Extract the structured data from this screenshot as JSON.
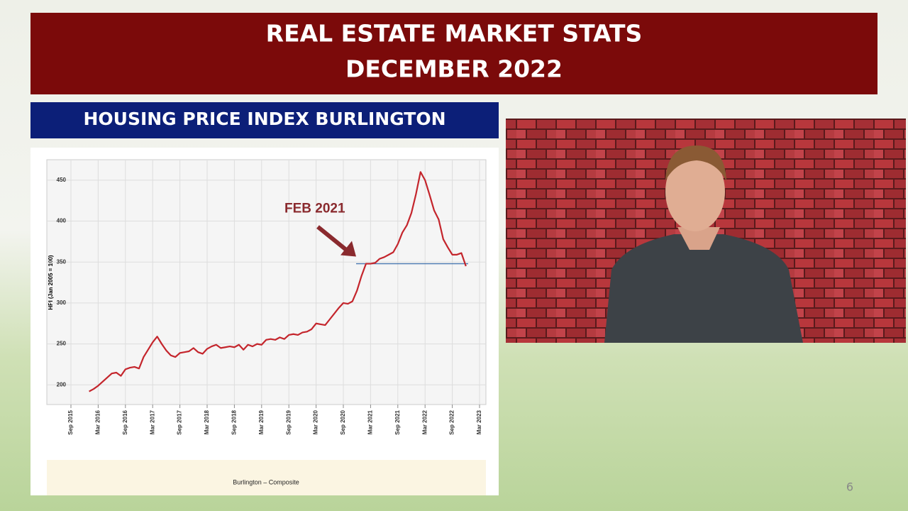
{
  "slide": {
    "title_lines": [
      "REAL ESTATE MARKET STATS",
      "DECEMBER 2022"
    ],
    "section_title": "HOUSING PRICE INDEX BURLINGTON",
    "page_number": "6"
  },
  "chart_data": {
    "type": "line",
    "ylabel": "HPI (Jan 2005 = 100)",
    "x": [
      "Jan 2016",
      "Feb 2016",
      "Mar 2016",
      "Apr 2016",
      "May 2016",
      "Jun 2016",
      "Jul 2016",
      "Aug 2016",
      "Sep 2016",
      "Oct 2016",
      "Nov 2016",
      "Dec 2016",
      "Jan 2017",
      "Feb 2017",
      "Mar 2017",
      "Apr 2017",
      "May 2017",
      "Jun 2017",
      "Jul 2017",
      "Aug 2017",
      "Sep 2017",
      "Oct 2017",
      "Nov 2017",
      "Dec 2017",
      "Jan 2018",
      "Feb 2018",
      "Mar 2018",
      "Apr 2018",
      "May 2018",
      "Jun 2018",
      "Jul 2018",
      "Aug 2018",
      "Sep 2018",
      "Oct 2018",
      "Nov 2018",
      "Dec 2018",
      "Jan 2019",
      "Feb 2019",
      "Mar 2019",
      "Apr 2019",
      "May 2019",
      "Jun 2019",
      "Jul 2019",
      "Aug 2019",
      "Sep 2019",
      "Oct 2019",
      "Nov 2019",
      "Dec 2019",
      "Jan 2020",
      "Feb 2020",
      "Mar 2020",
      "Apr 2020",
      "May 2020",
      "Jun 2020",
      "Jul 2020",
      "Aug 2020",
      "Sep 2020",
      "Oct 2020",
      "Nov 2020",
      "Dec 2020",
      "Jan 2021",
      "Feb 2021",
      "Mar 2021",
      "Apr 2021",
      "May 2021",
      "Jun 2021",
      "Jul 2021",
      "Aug 2021",
      "Sep 2021",
      "Oct 2021",
      "Nov 2021",
      "Dec 2021",
      "Jan 2022",
      "Feb 2022",
      "Mar 2022",
      "Apr 2022",
      "May 2022",
      "Jun 2022",
      "Jul 2022",
      "Aug 2022",
      "Sep 2022",
      "Oct 2022",
      "Nov 2022",
      "Dec 2022"
    ],
    "series": [
      {
        "name": "Burlington – Composite",
        "color": "#c4252c",
        "values": [
          192,
          195,
          199,
          204,
          209,
          214,
          215,
          211,
          219,
          221,
          222,
          220,
          234,
          243,
          252,
          259,
          250,
          242,
          236,
          234,
          239,
          240,
          241,
          245,
          240,
          238,
          244,
          247,
          249,
          245,
          246,
          247,
          246,
          249,
          243,
          249,
          247,
          250,
          249,
          255,
          256,
          255,
          258,
          256,
          261,
          262,
          261,
          264,
          265,
          268,
          275,
          274,
          273,
          280,
          287,
          294,
          300,
          299,
          302,
          315,
          333,
          348,
          348,
          349,
          354,
          356,
          359,
          362,
          372,
          386,
          395,
          410,
          433,
          460,
          450,
          432,
          413,
          402,
          378,
          368,
          359,
          359,
          361,
          345
        ]
      }
    ],
    "xlim": [
      "Sep 2015",
      "Mar 2023"
    ],
    "xticks": [
      "Sep 2015",
      "Mar 2016",
      "Sep 2016",
      "Mar 2017",
      "Sep 2017",
      "Mar 2018",
      "Sep 2018",
      "Mar 2019",
      "Sep 2019",
      "Mar 2020",
      "Sep 2020",
      "Mar 2021",
      "Sep 2021",
      "Mar 2022",
      "Sep 2022",
      "Mar 2023"
    ],
    "ylim": [
      176,
      475
    ],
    "yticks": [
      200,
      250,
      300,
      350,
      400,
      450
    ],
    "grid": true,
    "hline": {
      "value": 348,
      "color": "#4a78b0"
    },
    "annotation": {
      "text": "FEB 2021",
      "x": "Feb 2021",
      "y": 348,
      "color": "#8a2a2e"
    }
  }
}
